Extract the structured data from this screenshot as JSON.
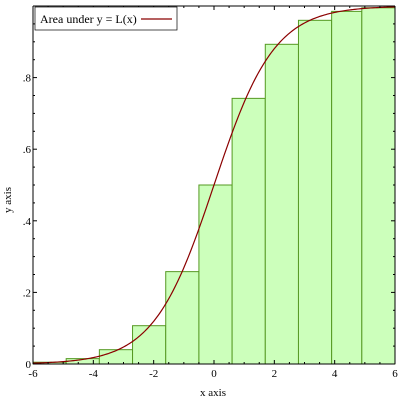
{
  "chart_data": {
    "type": "bar",
    "xlabel": "x axis",
    "ylabel": "y axis",
    "xlim": [
      -6,
      6
    ],
    "ylim": [
      0,
      1
    ],
    "x_ticks": [
      -6,
      -4,
      -2,
      0,
      2,
      4,
      6
    ],
    "x_tick_labels": [
      "-6",
      "-4",
      "-2",
      "0",
      "2",
      "4",
      "6"
    ],
    "y_ticks": [
      0,
      0.2,
      0.4,
      0.6,
      0.8
    ],
    "y_tick_labels": [
      "0",
      ".2",
      ".4",
      ".6",
      ".8"
    ],
    "legend_position": "top-left",
    "bars": [
      {
        "x0": -6.0,
        "x1": -4.9,
        "value": 0.005
      },
      {
        "x0": -4.9,
        "x1": -3.8,
        "value": 0.015
      },
      {
        "x0": -3.8,
        "x1": -2.7,
        "value": 0.04
      },
      {
        "x0": -2.7,
        "x1": -1.6,
        "value": 0.107
      },
      {
        "x0": -1.6,
        "x1": -0.5,
        "value": 0.258
      },
      {
        "x0": -0.5,
        "x1": 0.6,
        "value": 0.5
      },
      {
        "x0": 0.6,
        "x1": 1.7,
        "value": 0.742
      },
      {
        "x0": 1.7,
        "x1": 2.8,
        "value": 0.893
      },
      {
        "x0": 2.8,
        "x1": 3.9,
        "value": 0.96
      },
      {
        "x0": 3.9,
        "x1": 4.9,
        "value": 0.985
      },
      {
        "x0": 4.9,
        "x1": 6.0,
        "value": 0.995
      }
    ],
    "series": [
      {
        "name": "Area under y = L(x)",
        "function": "logistic",
        "x_range": [
          -6,
          6
        ]
      }
    ]
  },
  "colors": {
    "bar_fill": "#ccffbb",
    "bar_stroke": "#559922",
    "curve": "#8b0000",
    "axis": "#000000"
  }
}
